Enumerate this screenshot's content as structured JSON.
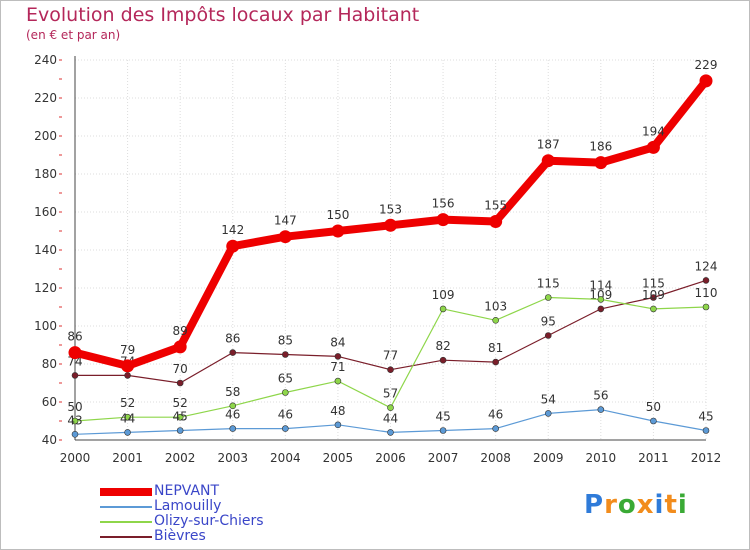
{
  "header": {
    "title": "Evolution des Impôts locaux par Habitant",
    "subtitle": "(en € et par an)"
  },
  "logo": {
    "text": "Proxiti",
    "colors": [
      "#2f7bd9",
      "#f28c1c",
      "#3aaa35",
      "#f28c1c",
      "#2f7bd9",
      "#f28c1c",
      "#3aaa35"
    ]
  },
  "chart_data": {
    "type": "line",
    "x": [
      "2000",
      "2001",
      "2002",
      "2003",
      "2004",
      "2005",
      "2006",
      "2007",
      "2008",
      "2009",
      "2010",
      "2011",
      "2012"
    ],
    "ylim": [
      40,
      240
    ],
    "yticks": [
      40,
      60,
      80,
      100,
      120,
      140,
      160,
      180,
      200,
      220,
      240
    ],
    "grid": true,
    "legend_position": "bottom-left",
    "series": [
      {
        "name": "Bièvres",
        "color": "#7a1e2a",
        "values": [
          74,
          74,
          70,
          86,
          85,
          84,
          77,
          82,
          81,
          95,
          109,
          115,
          124
        ]
      },
      {
        "name": "Olizy-sur-Chiers",
        "color": "#8ed64a",
        "values": [
          50,
          52,
          52,
          58,
          65,
          71,
          57,
          109,
          103,
          115,
          114,
          109,
          110
        ]
      },
      {
        "name": "Lamouilly",
        "color": "#5c9ad6",
        "values": [
          43,
          44,
          45,
          46,
          46,
          48,
          44,
          45,
          46,
          54,
          56,
          50,
          45
        ]
      },
      {
        "name": "NEPVANT",
        "color": "#ee0000",
        "values": [
          86,
          79,
          89,
          142,
          147,
          150,
          153,
          156,
          155,
          187,
          186,
          194,
          229
        ]
      }
    ],
    "legend_order": [
      "NEPVANT",
      "Lamouilly",
      "Olizy-sur-Chiers",
      "Bièvres"
    ]
  }
}
